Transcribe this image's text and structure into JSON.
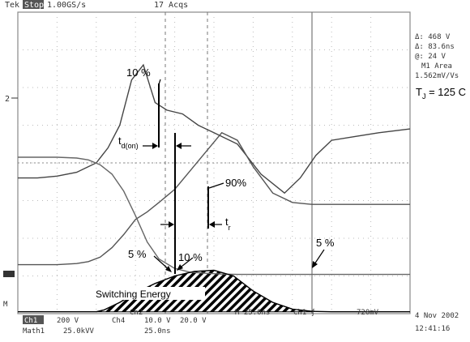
{
  "header": {
    "brand": "Tek",
    "mode": "Stop",
    "rate": "1.00GS/s",
    "acqs": "17 Acqs"
  },
  "readouts": {
    "delta_v": "Δ: 468 V",
    "at_v": "@: 24 V",
    "delta_t": "Δ: 83.6ns",
    "at_t": "@: 24 V",
    "math_area_label": "M1 Area",
    "math_area_value": "1.562mV/Vs"
  },
  "annotations": {
    "tj": "T",
    "tj_sub": "J",
    "tj_value": " = 125 C",
    "ten_pct_top": "10 %",
    "ten_pct_bottom": "10 %",
    "ninety_pct": "90%",
    "five_pct_left": "5 %",
    "five_pct_right": "5 %",
    "td_on": "t",
    "td_on_sub": "d(on)",
    "tr": "t",
    "tr_sub": "r",
    "switching_energy": "Switching Energy"
  },
  "bottom": {
    "ch1_label": "Ch1",
    "ch1_scale": "200 V",
    "ch2_label": "Ch2",
    "ch2_scale": "10.0 V",
    "ch4_label": "Ch4",
    "ch4_scale": "20.0 V",
    "math_label": "Math1",
    "math_scale": "25.0kVV",
    "math_time": "25.0ns",
    "timebase": "M 25.0ns",
    "trigger": "Ch1 ƒ",
    "trigger_level": "720mV",
    "date": "4 Nov 2002",
    "time": "12:41:16"
  },
  "chart_data": {
    "type": "line",
    "title": "",
    "xlabel": "",
    "ylabel": "",
    "grid": true,
    "series": [
      {
        "name": "",
        "x": [
          0,
          0.5,
          1.0,
          1.5,
          2.0,
          2.3,
          2.6,
          2.9,
          3.2,
          3.5,
          3.8,
          4.2,
          4.6,
          5.0,
          5.6,
          6.2,
          6.8,
          7.2,
          7.6,
          8.0,
          8.6,
          9.2,
          10
        ],
        "values": [
          3.6,
          3.6,
          3.65,
          3.75,
          4.0,
          4.4,
          5.0,
          6.2,
          6.6,
          5.6,
          5.4,
          5.3,
          5.0,
          4.8,
          4.5,
          3.7,
          3.2,
          3.6,
          4.2,
          4.6,
          4.7,
          4.8,
          4.9
        ]
      },
      {
        "name": "",
        "x": [
          0,
          0.5,
          1.0,
          1.5,
          1.8,
          2.1,
          2.4,
          2.7,
          3.0,
          3.3,
          3.6,
          4.0,
          4.4,
          4.8,
          5.2,
          5.6,
          6.0,
          6.5,
          7.0,
          7.5,
          8.0,
          9.0,
          10
        ],
        "values": [
          1.3,
          1.3,
          1.3,
          1.33,
          1.38,
          1.5,
          1.75,
          2.1,
          2.5,
          2.7,
          2.95,
          3.3,
          3.8,
          4.3,
          4.8,
          4.6,
          3.9,
          3.2,
          2.95,
          2.9,
          2.9,
          2.9,
          2.9
        ]
      },
      {
        "name": "",
        "x": [
          0,
          0.5,
          1.0,
          1.5,
          1.8,
          2.1,
          2.4,
          2.7,
          3.0,
          3.3,
          3.6,
          4.0,
          4.4,
          4.8,
          5.2,
          5.6,
          6.0,
          6.5,
          7.0,
          7.5,
          8.0,
          9.0,
          10
        ],
        "values": [
          4.15,
          4.15,
          4.15,
          4.13,
          4.08,
          3.95,
          3.7,
          3.25,
          2.6,
          1.9,
          1.45,
          1.2,
          1.1,
          1.07,
          1.05,
          1.04,
          1.04,
          1.04,
          1.04,
          1.04,
          1.04,
          1.04,
          1.04
        ]
      },
      {
        "name": "",
        "x": [
          0,
          1.0,
          2.0,
          2.2,
          2.6,
          3.0,
          3.5,
          4.0,
          4.5,
          5.0,
          5.5,
          6.0,
          6.5,
          7.0,
          7.5,
          8.0,
          9.0,
          10
        ],
        "values": [
          0.05,
          0.05,
          0.05,
          0.1,
          0.3,
          0.55,
          0.8,
          1.0,
          1.12,
          1.15,
          1.0,
          0.6,
          0.3,
          0.12,
          0.06,
          0.05,
          0.05,
          0.05
        ]
      }
    ],
    "xlim": [
      0,
      10
    ],
    "ylim": [
      0,
      8
    ]
  }
}
